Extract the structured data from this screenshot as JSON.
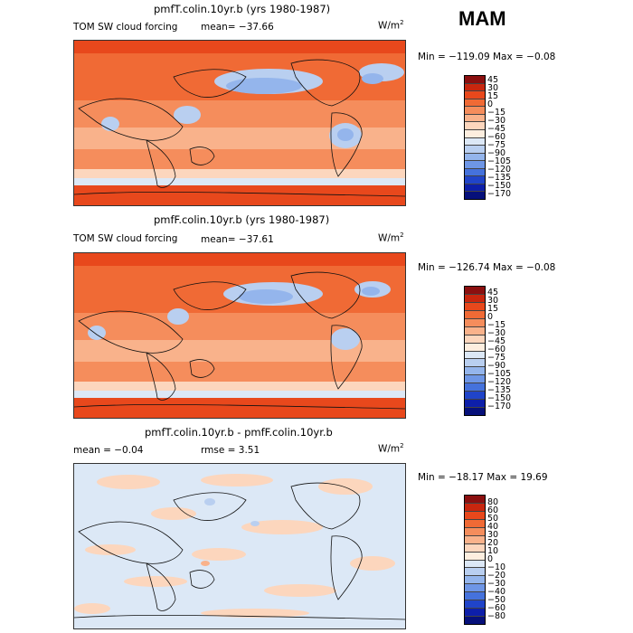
{
  "season": "MAM",
  "panels": [
    {
      "title": "pmfT.colin.10yr.b (yrs 1980-1987)",
      "left_label": "TOM SW cloud forcing",
      "mean_text": "mean= −37.66",
      "units": "W/m",
      "units_exp": "2",
      "minmax_text": "Min = −119.09 Max =  −0.08",
      "levels": [
        "45",
        "30",
        "15",
        "0",
        "−15",
        "−30",
        "−45",
        "−60",
        "−75",
        "−90",
        "−105",
        "−120",
        "−135",
        "−150",
        "−170"
      ],
      "colors": [
        "#8b0f0f",
        "#c8260e",
        "#e8481c",
        "#f06a35",
        "#f58d5c",
        "#f9b28b",
        "#fcd6bd",
        "#fdeedf",
        "#dce8f6",
        "#b9cff0",
        "#94b5ec",
        "#6e96e6",
        "#4572dc",
        "#2044c9",
        "#0d1faa",
        "#06107a"
      ]
    },
    {
      "title": "pmfF.colin.10yr.b (yrs 1980-1987)",
      "left_label": "TOM SW cloud forcing",
      "mean_text": "mean= −37.61",
      "units": "W/m",
      "units_exp": "2",
      "minmax_text": "Min = −126.74 Max =  −0.08",
      "levels": [
        "45",
        "30",
        "15",
        "0",
        "−15",
        "−30",
        "−45",
        "−60",
        "−75",
        "−90",
        "−105",
        "−120",
        "−135",
        "−150",
        "−170"
      ],
      "colors": [
        "#8b0f0f",
        "#c8260e",
        "#e8481c",
        "#f06a35",
        "#f58d5c",
        "#f9b28b",
        "#fcd6bd",
        "#fdeedf",
        "#dce8f6",
        "#b9cff0",
        "#94b5ec",
        "#6e96e6",
        "#4572dc",
        "#2044c9",
        "#0d1faa",
        "#06107a"
      ]
    },
    {
      "title": "pmfT.colin.10yr.b - pmfF.colin.10yr.b",
      "left_label": "mean =  −0.04",
      "mean_text": "rmse =    3.51",
      "units": "W/m",
      "units_exp": "2",
      "minmax_text": "Min = −18.17 Max =  19.69",
      "levels": [
        "80",
        "60",
        "50",
        "40",
        "30",
        "20",
        "10",
        "0",
        "−10",
        "−20",
        "−30",
        "−40",
        "−50",
        "−60",
        "−80"
      ],
      "colors": [
        "#8b0f0f",
        "#c8260e",
        "#e8481c",
        "#f06a35",
        "#f58d5c",
        "#f9b28b",
        "#fcd6bd",
        "#fdeedf",
        "#dce8f6",
        "#b9cff0",
        "#94b5ec",
        "#6e96e6",
        "#4572dc",
        "#2044c9",
        "#0d1faa",
        "#06107a"
      ]
    }
  ],
  "chart_data": {
    "type": "heatmap",
    "title": "MAM",
    "panels": [
      {
        "title": "pmfT.colin.10yr.b (yrs 1980-1987)",
        "variable": "TOM SW cloud forcing",
        "mean": -37.66,
        "min": -119.09,
        "max": -0.08,
        "units": "W/m2",
        "contour_levels": [
          45,
          30,
          15,
          0,
          -15,
          -30,
          -45,
          -60,
          -75,
          -90,
          -105,
          -120,
          -135,
          -150,
          -170
        ]
      },
      {
        "title": "pmfF.colin.10yr.b (yrs 1980-1987)",
        "variable": "TOM SW cloud forcing",
        "mean": -37.61,
        "min": -126.74,
        "max": -0.08,
        "units": "W/m2",
        "contour_levels": [
          45,
          30,
          15,
          0,
          -15,
          -30,
          -45,
          -60,
          -75,
          -90,
          -105,
          -120,
          -135,
          -150,
          -170
        ]
      },
      {
        "title": "pmfT.colin.10yr.b - pmfF.colin.10yr.b",
        "mean": -0.04,
        "rmse": 3.51,
        "min": -18.17,
        "max": 19.69,
        "units": "W/m2",
        "contour_levels": [
          80,
          60,
          50,
          40,
          30,
          20,
          10,
          0,
          -10,
          -20,
          -30,
          -40,
          -50,
          -60,
          -80
        ]
      }
    ]
  }
}
